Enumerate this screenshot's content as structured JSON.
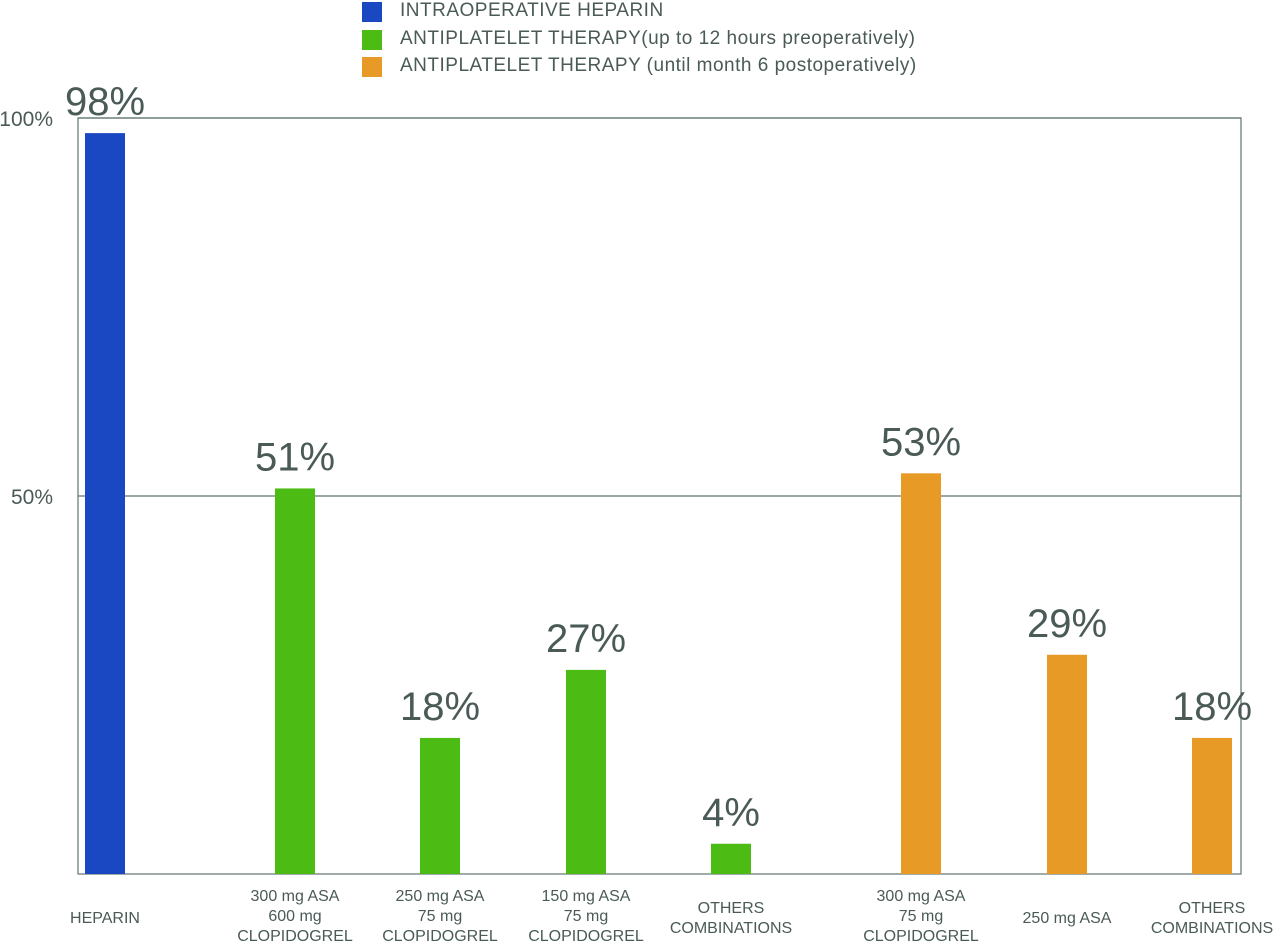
{
  "chart_data": {
    "type": "bar",
    "ylim": [
      0,
      100
    ],
    "yticks": [
      {
        "value": 100,
        "label": "100%"
      },
      {
        "value": 50,
        "label": "50%"
      }
    ],
    "grid": true,
    "legend_position": "top-center",
    "series": [
      {
        "name": "INTRAOPERATIVE HEPARIN",
        "color": "#1a47c2"
      },
      {
        "name": "ANTIPLATELET THERAPY(up to 12 hours preoperatively)",
        "color": "#4cbc14"
      },
      {
        "name": "ANTIPLATELET THERAPY (until month 6 postoperatively)",
        "color": "#e89a26"
      }
    ],
    "bars": [
      {
        "series": 0,
        "category": [
          "HEPARIN"
        ],
        "value": 98,
        "label": "98%"
      },
      {
        "series": 1,
        "category": [
          "300 mg ASA",
          "600 mg",
          "CLOPIDOGREL"
        ],
        "value": 51,
        "label": "51%"
      },
      {
        "series": 1,
        "category": [
          "250 mg ASA",
          "75 mg",
          "CLOPIDOGREL"
        ],
        "value": 18,
        "label": "18%"
      },
      {
        "series": 1,
        "category": [
          "150 mg ASA",
          "75 mg",
          "CLOPIDOGREL"
        ],
        "value": 27,
        "label": "27%"
      },
      {
        "series": 1,
        "category": [
          "OTHERS",
          "COMBINATIONS"
        ],
        "value": 4,
        "label": "4%"
      },
      {
        "series": 2,
        "category": [
          "300 mg ASA",
          "75 mg",
          "CLOPIDOGREL"
        ],
        "value": 53,
        "label": "53%"
      },
      {
        "series": 2,
        "category": [
          "250 mg ASA"
        ],
        "value": 29,
        "label": "29%"
      },
      {
        "series": 2,
        "category": [
          "OTHERS",
          "COMBINATIONS"
        ],
        "value": 18,
        "label": "18%"
      }
    ]
  }
}
